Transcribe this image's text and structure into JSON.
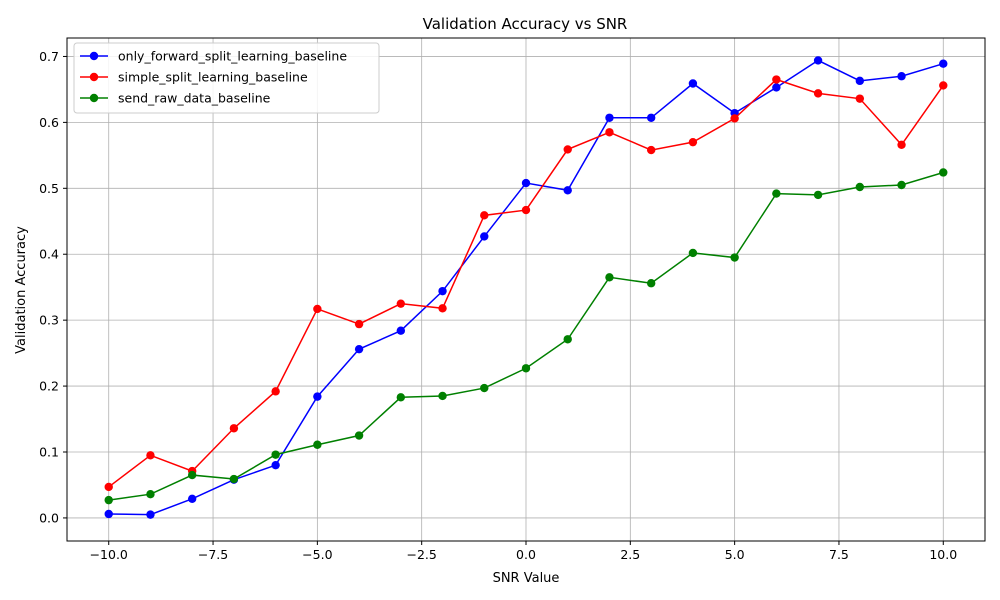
{
  "chart_data": {
    "type": "line",
    "title": "Validation Accuracy vs SNR",
    "xlabel": "SNR Value",
    "ylabel": "Validation Accuracy",
    "xlim": [
      -11.0,
      11.0
    ],
    "ylim": [
      -0.035,
      0.728
    ],
    "xticks": [
      -10.0,
      -7.5,
      -5.0,
      -2.5,
      0.0,
      2.5,
      5.0,
      7.5,
      10.0
    ],
    "xtick_labels": [
      "−10.0",
      "−7.5",
      "−5.0",
      "−2.5",
      "0.0",
      "2.5",
      "5.0",
      "7.5",
      "10.0"
    ],
    "yticks": [
      0.0,
      0.1,
      0.2,
      0.3,
      0.4,
      0.5,
      0.6,
      0.7
    ],
    "ytick_labels": [
      "0.0",
      "0.1",
      "0.2",
      "0.3",
      "0.4",
      "0.5",
      "0.6",
      "0.7"
    ],
    "grid": true,
    "legend_position": "top-left",
    "x": [
      -10,
      -9,
      -8,
      -7,
      -6,
      -5,
      -4,
      -3,
      -2,
      -1,
      0,
      1,
      2,
      3,
      4,
      5,
      6,
      7,
      8,
      9,
      10
    ],
    "series": [
      {
        "name": "only_forward_split_learning_baseline",
        "color": "#0000ff",
        "values": [
          0.006,
          0.005,
          0.029,
          0.058,
          0.08,
          0.184,
          0.256,
          0.284,
          0.344,
          0.427,
          0.508,
          0.497,
          0.607,
          0.607,
          0.659,
          0.614,
          0.653,
          0.694,
          0.663,
          0.67,
          0.689
        ]
      },
      {
        "name": "simple_split_learning_baseline",
        "color": "#ff0000",
        "values": [
          0.047,
          0.095,
          0.071,
          0.136,
          0.192,
          0.317,
          0.294,
          0.325,
          0.318,
          0.459,
          0.467,
          0.559,
          0.585,
          0.558,
          0.57,
          0.606,
          0.665,
          0.644,
          0.636,
          0.566,
          0.656
        ]
      },
      {
        "name": "send_raw_data_baseline",
        "color": "#008000",
        "values": [
          0.027,
          0.036,
          0.065,
          0.059,
          0.096,
          0.111,
          0.125,
          0.183,
          0.185,
          0.197,
          0.227,
          0.271,
          0.365,
          0.356,
          0.402,
          0.395,
          0.492,
          0.49,
          0.502,
          0.505,
          0.524
        ]
      }
    ]
  }
}
